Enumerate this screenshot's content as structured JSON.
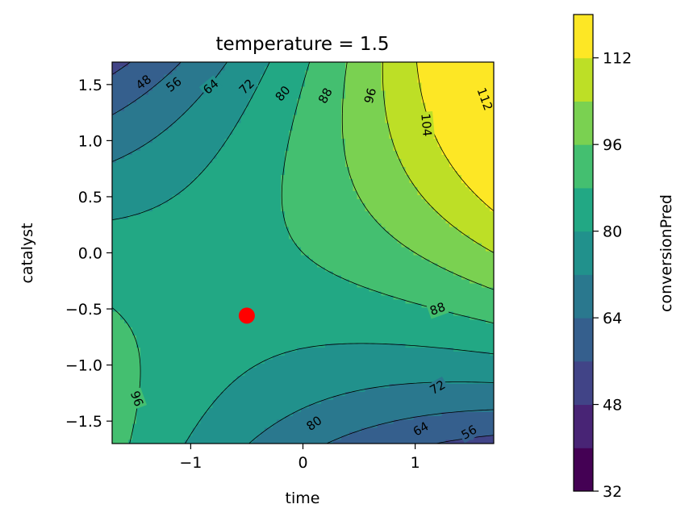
{
  "chart_data": {
    "type": "contourf",
    "title": "temperature = 1.5",
    "xlabel": "time",
    "ylabel": "catalyst",
    "xlim": [
      -1.7,
      1.7
    ],
    "ylim": [
      -1.7,
      1.7
    ],
    "xticks": [
      "−1",
      "0",
      "1"
    ],
    "xtick_values": [
      -1,
      0,
      1
    ],
    "yticks": [
      "−1.5",
      "−1.0",
      "−0.5",
      "0.0",
      "0.5",
      "1.0",
      "1.5"
    ],
    "ytick_values": [
      -1.5,
      -1.0,
      -0.5,
      0.0,
      0.5,
      1.0,
      1.5
    ],
    "colorbar": {
      "label": "conversionPred",
      "ticks": [
        "32",
        "48",
        "64",
        "80",
        "96",
        "112"
      ],
      "tick_values": [
        32,
        48,
        64,
        80,
        96,
        112
      ],
      "range": [
        32,
        120
      ],
      "level_step": 8,
      "colors": [
        "#440154",
        "#482475",
        "#414487",
        "#355f8d",
        "#2a788e",
        "#21918c",
        "#22a884",
        "#44bf70",
        "#7ad151",
        "#bddf26",
        "#fde725"
      ]
    },
    "contour_labels": [
      {
        "text": "48",
        "x": -1.42,
        "y": 1.52,
        "rot": -38
      },
      {
        "text": "56",
        "x": -1.15,
        "y": 1.5,
        "rot": -38
      },
      {
        "text": "64",
        "x": -0.82,
        "y": 1.48,
        "rot": -40
      },
      {
        "text": "72",
        "x": -0.5,
        "y": 1.48,
        "rot": -45
      },
      {
        "text": "80",
        "x": -0.18,
        "y": 1.42,
        "rot": -50
      },
      {
        "text": "88",
        "x": 0.2,
        "y": 1.4,
        "rot": -62
      },
      {
        "text": "96",
        "x": 0.6,
        "y": 1.4,
        "rot": -75
      },
      {
        "text": "104",
        "x": 1.1,
        "y": 1.14,
        "rot": 85
      },
      {
        "text": "112",
        "x": 1.62,
        "y": 1.37,
        "rot": 70
      },
      {
        "text": "88",
        "x": 1.2,
        "y": -0.5,
        "rot": -20
      },
      {
        "text": "72",
        "x": 1.2,
        "y": -1.2,
        "rot": -30
      },
      {
        "text": "80",
        "x": 0.1,
        "y": -1.52,
        "rot": -35
      },
      {
        "text": "64",
        "x": 1.05,
        "y": -1.57,
        "rot": -30
      },
      {
        "text": "56",
        "x": 1.48,
        "y": -1.6,
        "rot": -30
      },
      {
        "text": "96",
        "x": -1.48,
        "y": -1.3,
        "rot": 70
      }
    ],
    "marker": {
      "x": -0.5,
      "y": -0.56,
      "color": "#ff0000"
    }
  }
}
